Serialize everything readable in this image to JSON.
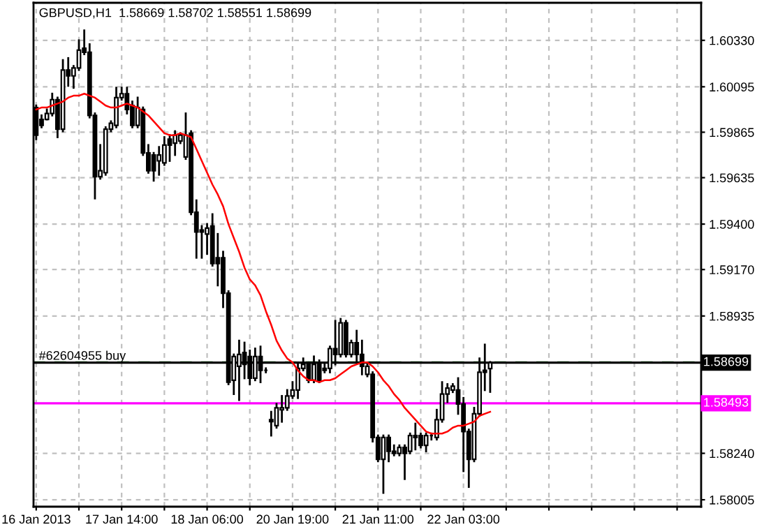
{
  "chart_data": {
    "type": "candlestick",
    "title": "GBPUSD,H1  1.58669 1.58702 1.58551 1.58699",
    "categories": [
      "16 Jan 2013",
      null,
      null,
      null,
      null,
      null,
      null,
      null,
      null,
      null,
      null,
      null,
      null,
      null,
      null,
      null,
      "17 Jan 14:00",
      null,
      null,
      null,
      null,
      null,
      null,
      null,
      null,
      null,
      null,
      null,
      null,
      null,
      null,
      null,
      "18 Jan 06:00",
      null,
      null,
      null,
      null,
      null,
      null,
      null,
      null,
      null,
      null,
      null,
      null,
      null,
      null,
      null,
      "20 Jan 19:00",
      null,
      null,
      null,
      null,
      null,
      null,
      null,
      null,
      null,
      null,
      null,
      null,
      null,
      null,
      null,
      "21 Jan 11:00",
      null,
      null,
      null,
      null,
      null,
      null,
      null,
      null,
      null,
      null,
      null,
      null,
      null,
      null,
      null,
      "22 Jan 03:00",
      null,
      null,
      null,
      null,
      null,
      null,
      null,
      null,
      null,
      null,
      null,
      null,
      null,
      null,
      null,
      null,
      null,
      null,
      null,
      null,
      null,
      null,
      null,
      null,
      null,
      null,
      null,
      null,
      null,
      null,
      null,
      null,
      null,
      null,
      null,
      null,
      null,
      null,
      null,
      null,
      null,
      null,
      null,
      null
    ],
    "ohlc": [
      [
        1.5999,
        1.6,
        1.5983,
        1.5985
      ],
      [
        1.5993,
        1.5995,
        1.5989,
        1.599
      ],
      [
        1.5993,
        1.5998,
        1.5993,
        1.5996
      ],
      [
        1.5996,
        1.6006,
        1.5995,
        1.6003
      ],
      [
        1.6003,
        1.6004,
        1.5984,
        1.5988
      ],
      [
        1.5988,
        1.6023,
        1.5987,
        1.6018
      ],
      [
        1.6018,
        1.6024,
        1.601,
        1.6015
      ],
      [
        1.6015,
        1.602,
        1.6009,
        1.6019
      ],
      [
        1.6019,
        1.6033,
        1.6018,
        1.6028
      ],
      [
        1.6029,
        1.6038,
        1.6026,
        1.6027
      ],
      [
        1.6027,
        1.6031,
        1.5994,
        1.5995
      ],
      [
        1.5995,
        1.5996,
        1.5953,
        1.5964
      ],
      [
        1.5964,
        1.598,
        1.5963,
        1.5967
      ],
      [
        1.5966,
        1.5989,
        1.5965,
        1.5988
      ],
      [
        1.5988,
        1.5992,
        1.5987,
        1.5991
      ],
      [
        1.599,
        1.6009,
        1.5989,
        1.6004
      ],
      [
        1.6004,
        1.6009,
        1.6003,
        1.6006
      ],
      [
        1.6006,
        1.6009,
        1.5996,
        1.5998
      ],
      [
        1.6,
        1.6002,
        1.5989,
        1.599
      ],
      [
        1.599,
        1.6004,
        1.5989,
        1.5999
      ],
      [
        1.5998,
        1.5999,
        1.5975,
        1.5976
      ],
      [
        1.5976,
        1.598,
        1.5966,
        1.5967
      ],
      [
        1.5975,
        1.5976,
        1.5962,
        1.5967
      ],
      [
        1.5972,
        1.5979,
        1.5965,
        1.5975
      ],
      [
        1.5971,
        1.5984,
        1.597,
        1.598
      ],
      [
        1.5983,
        1.5985,
        1.5972,
        1.598
      ],
      [
        1.5981,
        1.5987,
        1.5975,
        1.5985
      ],
      [
        1.5982,
        1.5986,
        1.5981,
        1.5985
      ],
      [
        1.5974,
        1.5996,
        1.5973,
        1.5985
      ],
      [
        1.5986,
        1.5987,
        1.5945,
        1.5946
      ],
      [
        1.5946,
        1.5952,
        1.5923,
        1.5936
      ],
      [
        1.5937,
        1.5939,
        1.5923,
        1.5936
      ],
      [
        1.5935,
        1.594,
        1.5925,
        1.5938
      ],
      [
        1.5939,
        1.5945,
        1.5919,
        1.592
      ],
      [
        1.5923,
        1.5935,
        1.5909,
        1.592
      ],
      [
        1.5923,
        1.5926,
        1.5898,
        1.5905
      ],
      [
        1.5905,
        1.5906,
        1.5859,
        1.586
      ],
      [
        1.5861,
        1.5874,
        1.5854,
        1.5873
      ],
      [
        1.5868,
        1.5881,
        1.5851,
        1.5874
      ],
      [
        1.5875,
        1.588,
        1.5862,
        1.5869
      ],
      [
        1.5873,
        1.5876,
        1.5859,
        1.5862
      ],
      [
        1.5862,
        1.5877,
        1.5861,
        1.5873
      ],
      [
        1.5873,
        1.5878,
        1.586,
        1.5866
      ],
      [
        1.5866,
        1.5867,
        1.5865,
        1.5866
      ],
      [
        1.5841,
        1.5845,
        1.5833,
        1.584
      ],
      [
        1.5838,
        1.5849,
        1.5837,
        1.5847
      ],
      [
        1.5846,
        1.5853,
        1.584,
        1.5847
      ],
      [
        1.5847,
        1.5856,
        1.5846,
        1.5853
      ],
      [
        1.5853,
        1.586,
        1.5852,
        1.5856
      ],
      [
        1.5856,
        1.587,
        1.5852,
        1.5867
      ],
      [
        1.5867,
        1.5872,
        1.5866,
        1.5869
      ],
      [
        1.5869,
        1.587,
        1.586,
        1.5861
      ],
      [
        1.5861,
        1.5873,
        1.586,
        1.5869
      ],
      [
        1.5869,
        1.5871,
        1.586,
        1.5861
      ],
      [
        1.5867,
        1.5869,
        1.5865,
        1.5866
      ],
      [
        1.5867,
        1.5878,
        1.5865,
        1.5877
      ],
      [
        1.5877,
        1.5891,
        1.5869,
        1.5874
      ],
      [
        1.5874,
        1.5892,
        1.5873,
        1.589
      ],
      [
        1.589,
        1.5891,
        1.5873,
        1.5874
      ],
      [
        1.5874,
        1.5881,
        1.5873,
        1.588
      ],
      [
        1.588,
        1.5886,
        1.587,
        1.5874
      ],
      [
        1.5874,
        1.5881,
        1.5864,
        1.5868
      ],
      [
        1.5864,
        1.587,
        1.5863,
        1.5868
      ],
      [
        1.5864,
        1.5865,
        1.583,
        1.5832
      ],
      [
        1.5832,
        1.5833,
        1.582,
        1.5821
      ],
      [
        1.5821,
        1.5833,
        1.5804,
        1.5832
      ],
      [
        1.5832,
        1.5833,
        1.582,
        1.5825
      ],
      [
        1.5825,
        1.5828,
        1.5823,
        1.5824
      ],
      [
        1.5824,
        1.5828,
        1.5823,
        1.5827
      ],
      [
        1.5827,
        1.5828,
        1.5811,
        1.5824
      ],
      [
        1.5825,
        1.5834,
        1.5824,
        1.5833
      ],
      [
        1.5833,
        1.5839,
        1.5826,
        1.5832
      ],
      [
        1.5833,
        1.5834,
        1.5827,
        1.5828
      ],
      [
        1.5828,
        1.5834,
        1.5825,
        1.5833
      ],
      [
        1.5833,
        1.5834,
        1.5831,
        1.5833
      ],
      [
        1.5832,
        1.5846,
        1.5831,
        1.5841
      ],
      [
        1.5841,
        1.586,
        1.584,
        1.5854
      ],
      [
        1.5854,
        1.5859,
        1.585,
        1.5857
      ],
      [
        1.5856,
        1.5859,
        1.5855,
        1.5858
      ],
      [
        1.5856,
        1.5862,
        1.5844,
        1.5849
      ],
      [
        1.5849,
        1.5852,
        1.5815,
        1.5835
      ],
      [
        1.5835,
        1.5836,
        1.5807,
        1.5821
      ],
      [
        1.5821,
        1.5847,
        1.582,
        1.5844
      ],
      [
        1.5844,
        1.5872,
        1.5843,
        1.5865
      ],
      [
        1.5866,
        1.5879,
        1.5856,
        1.5865
      ],
      [
        1.58669,
        1.58702,
        1.58551,
        1.58699
      ],
      null,
      null,
      null,
      null,
      null,
      null,
      null,
      null,
      null,
      null,
      null,
      null,
      null,
      null,
      null,
      null,
      null,
      null,
      null,
      null,
      null,
      null,
      null,
      null,
      null,
      null,
      null,
      null,
      null,
      null,
      null,
      null,
      null,
      null,
      null,
      null,
      null,
      null,
      null
    ],
    "series": [
      {
        "type": "line",
        "color": "#ff0000",
        "values": [
          1.5998,
          1.5999,
          1.5999,
          1.6,
          1.6001,
          1.6002,
          1.6004,
          1.6005,
          1.6005,
          1.6006,
          1.6005,
          1.6004,
          1.6002,
          1.6,
          1.5999,
          1.5999,
          1.6,
          1.6001,
          1.6,
          1.5999,
          1.5997,
          1.5995,
          1.5992,
          1.5989,
          1.5986,
          1.5985,
          1.5985,
          1.5986,
          1.5985,
          1.5984,
          1.5978,
          1.5972,
          1.5966,
          1.596,
          1.5955,
          1.5949,
          1.594,
          1.5933,
          1.5926,
          1.5918,
          1.5912,
          1.5909,
          1.5904,
          1.5896,
          1.5889,
          1.5881,
          1.5876,
          1.5872,
          1.587,
          1.5866,
          1.5863,
          1.5861,
          1.5861,
          1.586,
          1.5861,
          1.5861,
          1.5862,
          1.5864,
          1.5866,
          1.5868,
          1.5869,
          1.587,
          1.587,
          1.5868,
          1.5865,
          1.5861,
          1.5858,
          1.5854,
          1.5851,
          1.5847,
          1.5844,
          1.5841,
          1.5838,
          1.5835,
          1.5834,
          1.5834,
          1.5834,
          1.5835,
          1.5837,
          1.5838,
          1.5838,
          1.5839,
          1.584,
          1.5843,
          1.5844,
          1.5845,
          null,
          null,
          null,
          null,
          null,
          null,
          null,
          null,
          null,
          null,
          null,
          null,
          null,
          null,
          null,
          null,
          null,
          null,
          null,
          null,
          null,
          null,
          null,
          null,
          null,
          null,
          null,
          null,
          null,
          null,
          null,
          null,
          null,
          null,
          null,
          null,
          null,
          null,
          null
        ]
      }
    ],
    "ylim": [
      1.5797,
      1.6052
    ],
    "yticks": [
      {
        "value": 1.6033,
        "label": "1.60330"
      },
      {
        "value": 1.60095,
        "label": "1.60095"
      },
      {
        "value": 1.59865,
        "label": "1.59865"
      },
      {
        "value": 1.59635,
        "label": "1.59635"
      },
      {
        "value": 1.594,
        "label": "1.59400"
      },
      {
        "value": 1.5917,
        "label": "1.59170"
      },
      {
        "value": 1.58935,
        "label": "1.58935"
      },
      {
        "value": 1.5824,
        "label": "1.58240"
      },
      {
        "value": 1.58005,
        "label": "1.58005"
      }
    ],
    "grid": true,
    "ref_lines": [
      {
        "axis": "y",
        "value": 1.587,
        "label": "#62604955 buy",
        "color": "#008000",
        "line_style": "dashed"
      },
      {
        "axis": "y",
        "value": 1.58699,
        "label": "1.58699",
        "color": "#000000",
        "line_style": "solid"
      },
      {
        "axis": "y",
        "value": 1.58493,
        "label": "1.58493",
        "color": "#ff00ff",
        "line_style": "solid"
      }
    ]
  }
}
